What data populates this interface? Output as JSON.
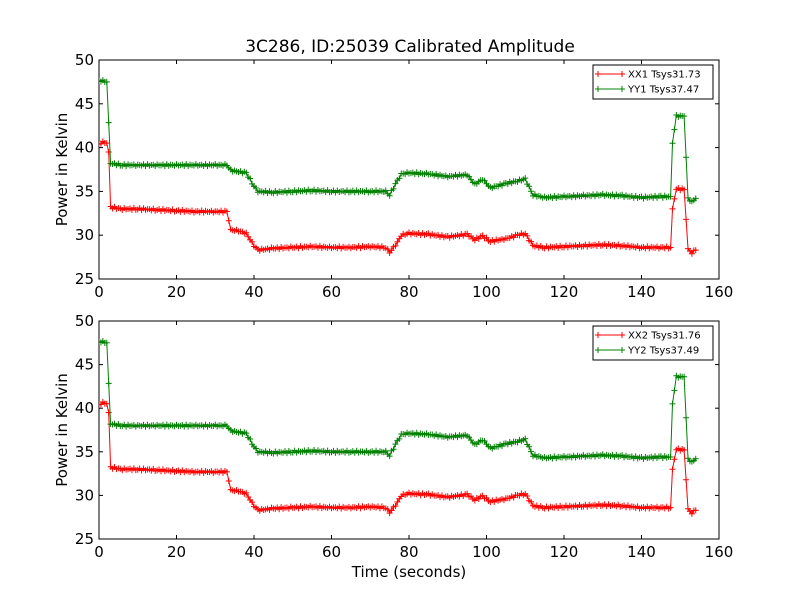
{
  "figure": {
    "title": "3C286, ID:25039 Calibrated Amplitude"
  },
  "chart_data": [
    {
      "type": "line",
      "title": "3C286, ID:25039 Calibrated Amplitude",
      "xlabel": "",
      "ylabel": "Power in Kelvin",
      "xlim": [
        0,
        160
      ],
      "ylim": [
        25,
        50
      ],
      "xticks": [
        0,
        20,
        40,
        60,
        80,
        100,
        120,
        140,
        160
      ],
      "yticks": [
        25,
        30,
        35,
        40,
        45,
        50
      ],
      "grid": false,
      "legend": "top-right",
      "marker": "plus",
      "series": [
        {
          "name": "XX1 Tsys31.73",
          "color": "#ff0000",
          "points": [
            [
              0,
              40.4
            ],
            [
              1,
              40.6
            ],
            [
              2,
              40.6
            ],
            [
              2.5,
              39.5
            ],
            [
              3,
              33.2
            ],
            [
              6,
              33.0
            ],
            [
              10,
              33.0
            ],
            [
              15,
              32.9
            ],
            [
              20,
              32.8
            ],
            [
              25,
              32.7
            ],
            [
              30,
              32.7
            ],
            [
              33,
              32.7
            ],
            [
              34,
              30.6
            ],
            [
              36,
              30.5
            ],
            [
              38,
              30.2
            ],
            [
              40,
              28.8
            ],
            [
              41,
              28.3
            ],
            [
              45,
              28.5
            ],
            [
              50,
              28.6
            ],
            [
              55,
              28.7
            ],
            [
              60,
              28.6
            ],
            [
              65,
              28.6
            ],
            [
              70,
              28.7
            ],
            [
              74,
              28.6
            ],
            [
              75,
              28.0
            ],
            [
              77,
              29.2
            ],
            [
              78,
              30.0
            ],
            [
              80,
              30.2
            ],
            [
              85,
              30.1
            ],
            [
              90,
              29.8
            ],
            [
              95,
              30.1
            ],
            [
              97,
              29.5
            ],
            [
              99,
              29.9
            ],
            [
              101,
              29.3
            ],
            [
              105,
              29.6
            ],
            [
              108,
              30.0
            ],
            [
              110,
              30.2
            ],
            [
              112,
              28.8
            ],
            [
              115,
              28.6
            ],
            [
              120,
              28.7
            ],
            [
              125,
              28.8
            ],
            [
              130,
              28.9
            ],
            [
              135,
              28.8
            ],
            [
              140,
              28.6
            ],
            [
              145,
              28.6
            ],
            [
              147.5,
              28.6
            ],
            [
              148,
              33.0
            ],
            [
              149,
              35.3
            ],
            [
              151,
              35.2
            ],
            [
              152,
              28.4
            ],
            [
              153,
              28.0
            ],
            [
              154,
              28.3
            ]
          ]
        },
        {
          "name": "YY1 Tsys37.47",
          "color": "#008000",
          "points": [
            [
              0,
              47.6
            ],
            [
              1,
              47.6
            ],
            [
              2,
              47.5
            ],
            [
              3,
              38.2
            ],
            [
              6,
              38.0
            ],
            [
              10,
              38.0
            ],
            [
              15,
              38.0
            ],
            [
              20,
              38.0
            ],
            [
              25,
              38.0
            ],
            [
              30,
              38.0
            ],
            [
              33,
              38.0
            ],
            [
              34,
              37.4
            ],
            [
              38,
              37.1
            ],
            [
              40,
              35.6
            ],
            [
              41,
              35.0
            ],
            [
              45,
              34.9
            ],
            [
              50,
              35.0
            ],
            [
              55,
              35.1
            ],
            [
              60,
              35.0
            ],
            [
              65,
              35.0
            ],
            [
              70,
              35.0
            ],
            [
              74,
              35.0
            ],
            [
              75,
              34.6
            ],
            [
              77,
              36.2
            ],
            [
              78,
              37.0
            ],
            [
              80,
              37.1
            ],
            [
              85,
              37.0
            ],
            [
              90,
              36.7
            ],
            [
              95,
              36.9
            ],
            [
              97,
              35.8
            ],
            [
              99,
              36.4
            ],
            [
              101,
              35.4
            ],
            [
              105,
              35.9
            ],
            [
              108,
              36.2
            ],
            [
              110,
              36.4
            ],
            [
              112,
              34.6
            ],
            [
              115,
              34.3
            ],
            [
              120,
              34.4
            ],
            [
              125,
              34.5
            ],
            [
              130,
              34.6
            ],
            [
              135,
              34.5
            ],
            [
              140,
              34.3
            ],
            [
              145,
              34.4
            ],
            [
              147.5,
              34.4
            ],
            [
              148,
              40.5
            ],
            [
              149,
              43.6
            ],
            [
              151,
              43.6
            ],
            [
              152,
              34.2
            ],
            [
              153,
              33.8
            ],
            [
              154,
              34.2
            ]
          ]
        }
      ]
    },
    {
      "type": "line",
      "title": "",
      "xlabel": "Time (seconds)",
      "ylabel": "Power in Kelvin",
      "xlim": [
        0,
        160
      ],
      "ylim": [
        25,
        50
      ],
      "xticks": [
        0,
        20,
        40,
        60,
        80,
        100,
        120,
        140,
        160
      ],
      "yticks": [
        25,
        30,
        35,
        40,
        45,
        50
      ],
      "grid": false,
      "legend": "top-right",
      "marker": "plus",
      "series": [
        {
          "name": "XX2 Tsys31.76",
          "color": "#ff0000",
          "points": [
            [
              0,
              40.4
            ],
            [
              1,
              40.6
            ],
            [
              2,
              40.6
            ],
            [
              2.5,
              39.5
            ],
            [
              3,
              33.2
            ],
            [
              6,
              33.0
            ],
            [
              10,
              33.0
            ],
            [
              15,
              32.9
            ],
            [
              20,
              32.8
            ],
            [
              25,
              32.7
            ],
            [
              30,
              32.7
            ],
            [
              33,
              32.7
            ],
            [
              34,
              30.6
            ],
            [
              36,
              30.5
            ],
            [
              38,
              30.2
            ],
            [
              40,
              28.8
            ],
            [
              41,
              28.3
            ],
            [
              45,
              28.5
            ],
            [
              50,
              28.6
            ],
            [
              55,
              28.7
            ],
            [
              60,
              28.6
            ],
            [
              65,
              28.6
            ],
            [
              70,
              28.7
            ],
            [
              74,
              28.6
            ],
            [
              75,
              28.0
            ],
            [
              77,
              29.2
            ],
            [
              78,
              30.0
            ],
            [
              80,
              30.2
            ],
            [
              85,
              30.1
            ],
            [
              90,
              29.8
            ],
            [
              95,
              30.1
            ],
            [
              97,
              29.5
            ],
            [
              99,
              29.9
            ],
            [
              101,
              29.3
            ],
            [
              105,
              29.6
            ],
            [
              108,
              30.0
            ],
            [
              110,
              30.2
            ],
            [
              112,
              28.8
            ],
            [
              115,
              28.6
            ],
            [
              120,
              28.7
            ],
            [
              125,
              28.8
            ],
            [
              130,
              28.9
            ],
            [
              135,
              28.8
            ],
            [
              140,
              28.6
            ],
            [
              145,
              28.6
            ],
            [
              147.5,
              28.6
            ],
            [
              148,
              33.0
            ],
            [
              149,
              35.3
            ],
            [
              151,
              35.2
            ],
            [
              152,
              28.4
            ],
            [
              153,
              28.0
            ],
            [
              154,
              28.3
            ]
          ]
        },
        {
          "name": "YY2 Tsys37.49",
          "color": "#008000",
          "points": [
            [
              0,
              47.6
            ],
            [
              1,
              47.6
            ],
            [
              2,
              47.5
            ],
            [
              3,
              38.2
            ],
            [
              6,
              38.0
            ],
            [
              10,
              38.0
            ],
            [
              15,
              38.0
            ],
            [
              20,
              38.0
            ],
            [
              25,
              38.0
            ],
            [
              30,
              38.0
            ],
            [
              33,
              38.0
            ],
            [
              34,
              37.4
            ],
            [
              38,
              37.1
            ],
            [
              40,
              35.6
            ],
            [
              41,
              35.0
            ],
            [
              45,
              34.9
            ],
            [
              50,
              35.0
            ],
            [
              55,
              35.1
            ],
            [
              60,
              35.0
            ],
            [
              65,
              35.0
            ],
            [
              70,
              35.0
            ],
            [
              74,
              35.0
            ],
            [
              75,
              34.6
            ],
            [
              77,
              36.2
            ],
            [
              78,
              37.0
            ],
            [
              80,
              37.1
            ],
            [
              85,
              37.0
            ],
            [
              90,
              36.7
            ],
            [
              95,
              36.9
            ],
            [
              97,
              35.8
            ],
            [
              99,
              36.4
            ],
            [
              101,
              35.4
            ],
            [
              105,
              35.9
            ],
            [
              108,
              36.2
            ],
            [
              110,
              36.4
            ],
            [
              112,
              34.6
            ],
            [
              115,
              34.3
            ],
            [
              120,
              34.4
            ],
            [
              125,
              34.5
            ],
            [
              130,
              34.6
            ],
            [
              135,
              34.5
            ],
            [
              140,
              34.3
            ],
            [
              145,
              34.4
            ],
            [
              147.5,
              34.4
            ],
            [
              148,
              40.5
            ],
            [
              149,
              43.6
            ],
            [
              151,
              43.6
            ],
            [
              152,
              34.2
            ],
            [
              153,
              33.8
            ],
            [
              154,
              34.2
            ]
          ]
        }
      ]
    }
  ]
}
